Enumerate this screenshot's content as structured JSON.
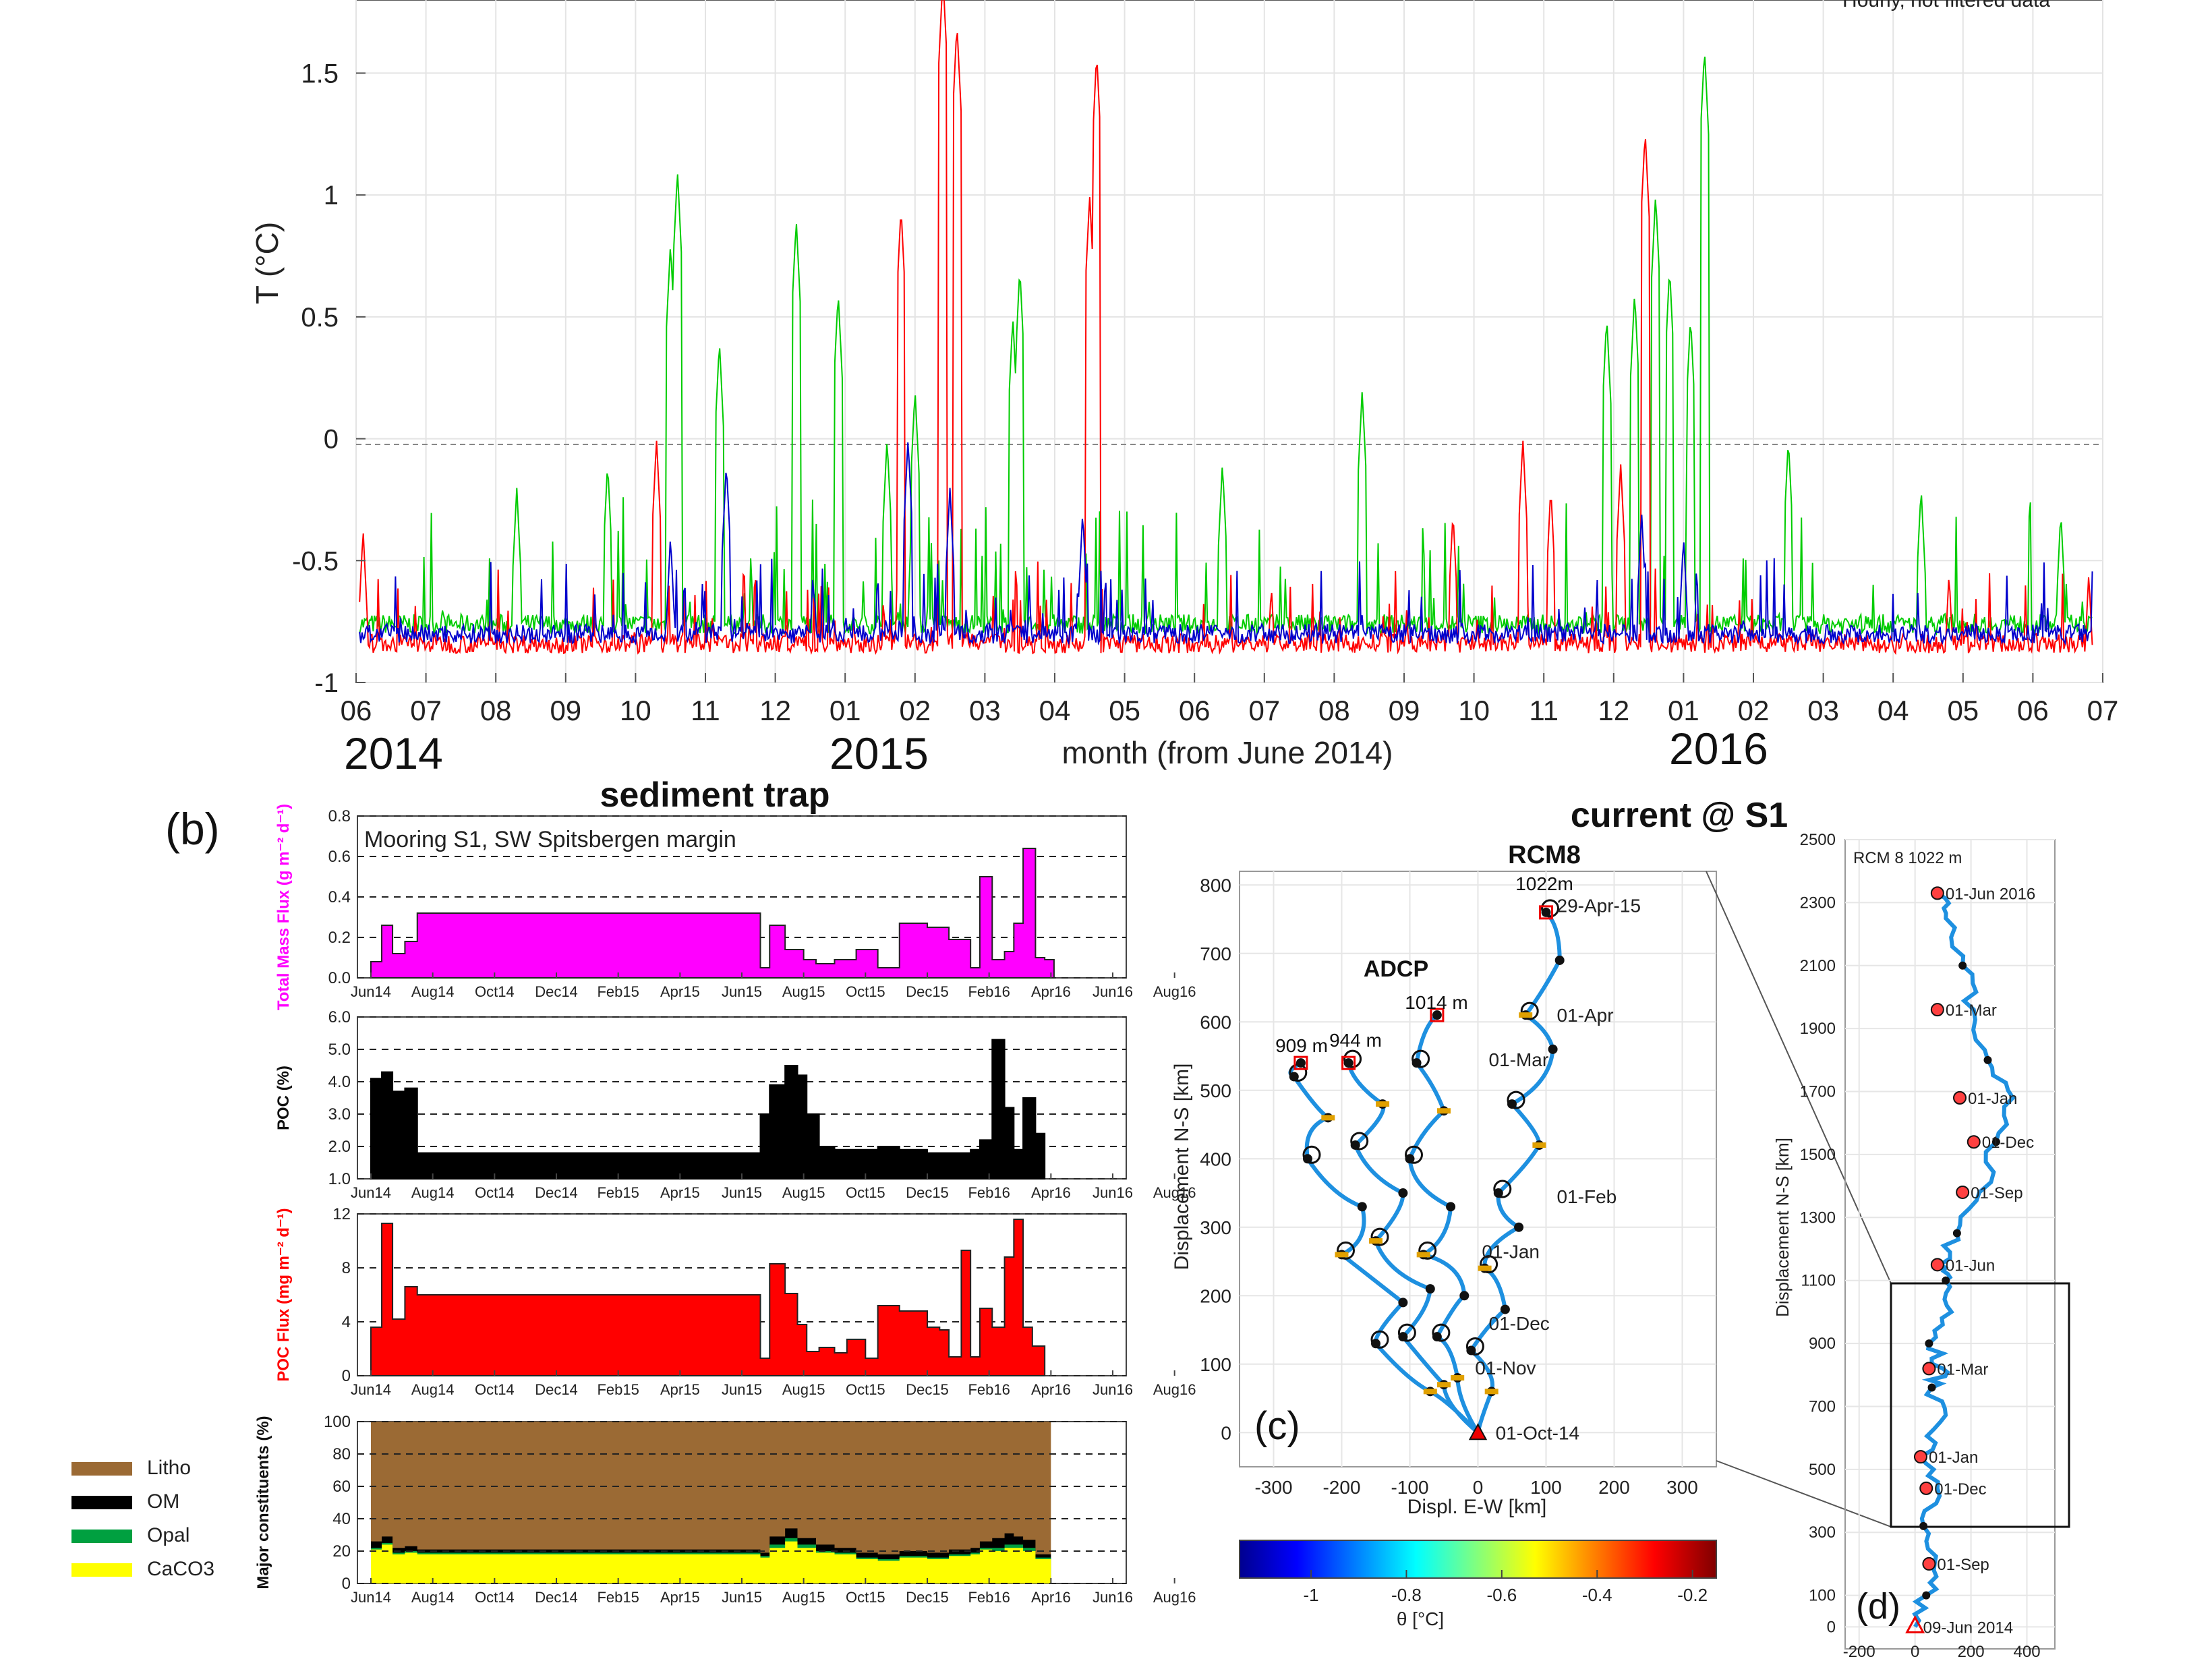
{
  "colors": {
    "red": "#ff0000",
    "green": "#00cc00",
    "blue": "#0000cc",
    "magenta": "#ff00ff",
    "litho": "#9b6a34",
    "om": "#000000",
    "opal": "#00a040",
    "caco3": "#ffff00",
    "track": "#1e90e0"
  },
  "panel_a": {
    "annotation": "Hourly, not filtered data",
    "year_labels": [
      "2014",
      "2015",
      "2016"
    ]
  },
  "panel_b": {
    "label": "(b)",
    "title": "sediment trap",
    "mooring_note": "Mooring S1, SW Spitsbergen margin",
    "legend": [
      "Litho",
      "OM",
      "Opal",
      "CaCO3"
    ]
  },
  "panel_c": {
    "label": "(c)",
    "title": "current @ S1",
    "track_labels": {
      "rcm8": "RCM8",
      "rcm8_depth": "1022m",
      "adcp": "ADCP",
      "d1014": "1014 m",
      "d944": "944 m",
      "d909": "909 m"
    },
    "date_labels": [
      "29-Apr-15",
      "01-Apr",
      "01-Mar",
      "01-Feb",
      "01-Jan",
      "01-Dec",
      "01-Nov",
      "01-Oct-14"
    ],
    "colorbar": {
      "label": "θ [°C]",
      "ticks": [
        "-1",
        "-0.8",
        "-0.6",
        "-0.4",
        "-0.2"
      ]
    }
  },
  "panel_d": {
    "label": "(d)",
    "title": "RCM 8 1022 m",
    "date_labels": [
      "01-Jun 2016",
      "01-Mar",
      "01-Jan",
      "01-Dec",
      "01-Sep",
      "01-Jun",
      "01-Mar",
      "01-Jan",
      "01-Dec",
      "01-Sep",
      "09-Jun 2014"
    ]
  },
  "chart_data": [
    {
      "id": "a",
      "type": "line",
      "title": "",
      "xlabel": "month (from June 2014)",
      "ylabel": "T (°C)",
      "ylim": [
        -1,
        1.8
      ],
      "yticks": [
        "-1",
        "-0.5",
        "0",
        "0.5",
        "1",
        "1.5"
      ],
      "xticks": [
        "06",
        "07",
        "08",
        "09",
        "10",
        "11",
        "12",
        "01",
        "02",
        "03",
        "04",
        "05",
        "06",
        "07",
        "08",
        "09",
        "10",
        "11",
        "12",
        "01",
        "02",
        "03",
        "04",
        "05",
        "06",
        "07"
      ],
      "x_month_range": [
        0,
        25
      ],
      "zero_reference": "dashed",
      "series": [
        {
          "color": "green",
          "level": -0.76,
          "spikes": [
            [
              2.3,
              -0.2
            ],
            [
              3.6,
              -0.1
            ],
            [
              4.5,
              0.8
            ],
            [
              4.6,
              1.1
            ],
            [
              5.2,
              0.4
            ],
            [
              6.3,
              0.9
            ],
            [
              6.9,
              0.6
            ],
            [
              7.6,
              0.0
            ],
            [
              8.0,
              0.2
            ],
            [
              9.4,
              0.5
            ],
            [
              9.5,
              0.7
            ],
            [
              12.4,
              -0.1
            ],
            [
              14.4,
              0.2
            ],
            [
              17.9,
              0.5
            ],
            [
              18.3,
              0.6
            ],
            [
              18.6,
              1.0
            ],
            [
              18.8,
              0.7
            ],
            [
              19.1,
              0.5
            ],
            [
              19.3,
              1.6
            ],
            [
              20.5,
              0.0
            ],
            [
              22.4,
              -0.2
            ],
            [
              24.4,
              -0.3
            ]
          ]
        },
        {
          "color": "red",
          "level": -0.84,
          "spikes": [
            [
              0.1,
              -0.37
            ],
            [
              4.3,
              0.0
            ],
            [
              7.8,
              0.95
            ],
            [
              8.4,
              1.9
            ],
            [
              8.6,
              1.7
            ],
            [
              10.5,
              1.0
            ],
            [
              10.6,
              1.58
            ],
            [
              13.1,
              -0.6
            ],
            [
              15.7,
              -0.3
            ],
            [
              16.7,
              0.0
            ],
            [
              17.1,
              -0.2
            ],
            [
              18.1,
              -0.1
            ],
            [
              18.45,
              1.26
            ],
            [
              22.8,
              -0.55
            ],
            [
              24.8,
              -0.55
            ]
          ]
        },
        {
          "color": "blue",
          "level": -0.8,
          "spikes": [
            [
              4.5,
              -0.4
            ],
            [
              5.3,
              -0.1
            ],
            [
              7.9,
              0.0
            ],
            [
              8.5,
              -0.2
            ],
            [
              10.4,
              -0.3
            ],
            [
              18.4,
              -0.3
            ],
            [
              19.0,
              -0.4
            ]
          ]
        }
      ]
    },
    {
      "id": "b1",
      "type": "bar",
      "ylabel": "Total Mass Flux (g m⁻² d⁻¹)",
      "ylim": [
        0,
        0.8
      ],
      "yticks": [
        "0.0",
        "0.2",
        "0.4",
        "0.6",
        "0.8"
      ],
      "xticks": [
        "Jun14",
        "Aug14",
        "Oct14",
        "Dec14",
        "Feb15",
        "Apr15",
        "Jun15",
        "Aug15",
        "Oct15",
        "Dec15",
        "Feb16",
        "Apr16",
        "Jun16",
        "Aug16"
      ],
      "steps": [
        [
          0.0,
          0.08
        ],
        [
          0.35,
          0.26
        ],
        [
          0.7,
          0.12
        ],
        [
          1.1,
          0.18
        ],
        [
          1.5,
          0.32
        ],
        [
          12.6,
          0.05
        ],
        [
          12.9,
          0.26
        ],
        [
          13.4,
          0.14
        ],
        [
          14.0,
          0.09
        ],
        [
          14.4,
          0.07
        ],
        [
          15.0,
          0.09
        ],
        [
          15.7,
          0.14
        ],
        [
          16.4,
          0.05
        ],
        [
          17.1,
          0.27
        ],
        [
          18.0,
          0.25
        ],
        [
          18.7,
          0.19
        ],
        [
          19.4,
          0.05
        ],
        [
          19.7,
          0.5
        ],
        [
          20.1,
          0.09
        ],
        [
          20.5,
          0.13
        ],
        [
          20.8,
          0.27
        ],
        [
          21.1,
          0.64
        ],
        [
          21.5,
          0.1
        ],
        [
          21.8,
          0.09
        ],
        [
          22.1,
          0.0
        ]
      ]
    },
    {
      "id": "b2",
      "type": "bar",
      "ylabel": "POC (%)",
      "ylim": [
        1,
        6
      ],
      "yticks": [
        "1.0",
        "2.0",
        "3.0",
        "4.0",
        "5.0",
        "6.0"
      ],
      "xticks": [
        "Jun14",
        "Aug14",
        "Oct14",
        "Dec14",
        "Feb15",
        "Apr15",
        "Jun15",
        "Aug15",
        "Oct15",
        "Dec15",
        "Feb16",
        "Apr16",
        "Jun16",
        "Aug16"
      ],
      "steps": [
        [
          0.0,
          4.1
        ],
        [
          0.35,
          4.3
        ],
        [
          0.7,
          3.7
        ],
        [
          1.1,
          3.8
        ],
        [
          1.5,
          1.8
        ],
        [
          12.6,
          3.0
        ],
        [
          12.9,
          3.9
        ],
        [
          13.4,
          4.5
        ],
        [
          13.8,
          4.2
        ],
        [
          14.1,
          3.0
        ],
        [
          14.5,
          2.0
        ],
        [
          15.0,
          1.9
        ],
        [
          15.7,
          1.9
        ],
        [
          16.4,
          2.0
        ],
        [
          17.1,
          1.9
        ],
        [
          18.0,
          1.8
        ],
        [
          18.7,
          1.8
        ],
        [
          19.4,
          1.9
        ],
        [
          19.7,
          2.2
        ],
        [
          20.1,
          5.3
        ],
        [
          20.5,
          3.2
        ],
        [
          20.8,
          1.9
        ],
        [
          21.1,
          3.5
        ],
        [
          21.5,
          2.4
        ],
        [
          21.8,
          1.0
        ]
      ]
    },
    {
      "id": "b3",
      "type": "bar",
      "ylabel": "POC Flux (mg m⁻² d⁻¹)",
      "ylim": [
        0,
        12
      ],
      "yticks": [
        "0",
        "4",
        "8",
        "12"
      ],
      "xticks": [
        "Jun14",
        "Aug14",
        "Oct14",
        "Dec14",
        "Feb15",
        "Apr15",
        "Jun15",
        "Aug15",
        "Oct15",
        "Dec15",
        "Feb16",
        "Apr16",
        "Jun16",
        "Aug16"
      ],
      "steps": [
        [
          0.0,
          3.6
        ],
        [
          0.35,
          11.3
        ],
        [
          0.7,
          4.2
        ],
        [
          1.1,
          6.6
        ],
        [
          1.5,
          6.0
        ],
        [
          12.6,
          1.3
        ],
        [
          12.9,
          8.3
        ],
        [
          13.4,
          6.1
        ],
        [
          13.8,
          3.8
        ],
        [
          14.1,
          1.8
        ],
        [
          14.5,
          2.1
        ],
        [
          15.0,
          1.7
        ],
        [
          15.4,
          2.7
        ],
        [
          16.0,
          1.3
        ],
        [
          16.4,
          5.2
        ],
        [
          17.1,
          4.8
        ],
        [
          18.0,
          3.6
        ],
        [
          18.4,
          3.4
        ],
        [
          18.7,
          1.4
        ],
        [
          19.1,
          9.3
        ],
        [
          19.4,
          1.4
        ],
        [
          19.7,
          5.0
        ],
        [
          20.1,
          3.6
        ],
        [
          20.5,
          8.8
        ],
        [
          20.8,
          11.6
        ],
        [
          21.1,
          3.6
        ],
        [
          21.4,
          2.2
        ],
        [
          21.8,
          0.0
        ]
      ]
    },
    {
      "id": "b4",
      "type": "area",
      "ylabel": "Major constituents (%)",
      "ylim": [
        0,
        100
      ],
      "yticks": [
        "0",
        "20",
        "40",
        "60",
        "80",
        "100"
      ],
      "xticks": [
        "Jun14",
        "Aug14",
        "Oct14",
        "Dec14",
        "Feb15",
        "Apr15",
        "Jun15",
        "Aug15",
        "Oct15",
        "Dec15",
        "Feb16",
        "Apr16",
        "Jun16",
        "Aug16"
      ],
      "caco3_top": [
        [
          0.0,
          21
        ],
        [
          0.35,
          24
        ],
        [
          0.7,
          18
        ],
        [
          1.1,
          19
        ],
        [
          1.5,
          18
        ],
        [
          12.6,
          16
        ],
        [
          12.9,
          22
        ],
        [
          13.4,
          26
        ],
        [
          13.8,
          22
        ],
        [
          14.4,
          19
        ],
        [
          15.0,
          18
        ],
        [
          15.7,
          15
        ],
        [
          16.4,
          14
        ],
        [
          17.1,
          16
        ],
        [
          18.0,
          15
        ],
        [
          18.7,
          17
        ],
        [
          19.4,
          18
        ],
        [
          19.7,
          21
        ],
        [
          20.1,
          20
        ],
        [
          20.5,
          22
        ],
        [
          20.8,
          22
        ],
        [
          21.1,
          20
        ],
        [
          21.5,
          15
        ]
      ],
      "opal_top": [
        [
          0.0,
          22
        ],
        [
          0.35,
          25
        ],
        [
          0.7,
          19
        ],
        [
          1.1,
          20
        ],
        [
          1.5,
          19
        ],
        [
          12.6,
          17
        ],
        [
          12.9,
          24
        ],
        [
          13.4,
          28
        ],
        [
          13.8,
          24
        ],
        [
          14.4,
          20
        ],
        [
          15.0,
          19
        ],
        [
          15.7,
          16
        ],
        [
          16.4,
          15
        ],
        [
          17.1,
          17
        ],
        [
          18.0,
          16
        ],
        [
          18.7,
          18
        ],
        [
          19.4,
          19
        ],
        [
          19.7,
          22
        ],
        [
          20.1,
          22
        ],
        [
          20.5,
          24
        ],
        [
          20.8,
          24
        ],
        [
          21.1,
          22
        ],
        [
          21.5,
          16
        ]
      ],
      "om_top": [
        [
          0.0,
          26
        ],
        [
          0.35,
          29
        ],
        [
          0.7,
          22
        ],
        [
          1.1,
          23
        ],
        [
          1.5,
          21
        ],
        [
          12.6,
          19
        ],
        [
          12.9,
          29
        ],
        [
          13.4,
          34
        ],
        [
          13.8,
          28
        ],
        [
          14.4,
          24
        ],
        [
          15.0,
          22
        ],
        [
          15.7,
          19
        ],
        [
          16.4,
          18
        ],
        [
          17.1,
          20
        ],
        [
          18.0,
          19
        ],
        [
          18.7,
          21
        ],
        [
          19.4,
          22
        ],
        [
          19.7,
          26
        ],
        [
          20.1,
          28
        ],
        [
          20.5,
          31
        ],
        [
          20.8,
          29
        ],
        [
          21.1,
          27
        ],
        [
          21.5,
          18
        ]
      ],
      "end_month": 22.0
    },
    {
      "id": "c",
      "type": "line",
      "xlabel": "Displ. E-W [km]",
      "ylabel": "Displacement N-S [km]",
      "xlim": [
        -350,
        350
      ],
      "ylim": [
        -50,
        820
      ],
      "xticks": [
        "-300",
        "-200",
        "-100",
        "0",
        "100",
        "200",
        "300"
      ],
      "yticks": [
        "0",
        "100",
        "200",
        "300",
        "400",
        "500",
        "600",
        "700",
        "800"
      ],
      "tracks": [
        [
          [
            0,
            0
          ],
          [
            20,
            60
          ],
          [
            -10,
            120
          ],
          [
            40,
            180
          ],
          [
            10,
            240
          ],
          [
            60,
            300
          ],
          [
            30,
            350
          ],
          [
            90,
            420
          ],
          [
            50,
            480
          ],
          [
            110,
            560
          ],
          [
            70,
            610
          ],
          [
            120,
            690
          ],
          [
            100,
            760
          ]
        ],
        [
          [
            0,
            0
          ],
          [
            -30,
            80
          ],
          [
            -60,
            140
          ],
          [
            -20,
            200
          ],
          [
            -80,
            260
          ],
          [
            -40,
            330
          ],
          [
            -100,
            400
          ],
          [
            -50,
            470
          ],
          [
            -90,
            540
          ],
          [
            -60,
            610
          ]
        ],
        [
          [
            0,
            0
          ],
          [
            -50,
            70
          ],
          [
            -110,
            140
          ],
          [
            -70,
            210
          ],
          [
            -150,
            280
          ],
          [
            -110,
            350
          ],
          [
            -180,
            420
          ],
          [
            -140,
            480
          ],
          [
            -190,
            540
          ]
        ],
        [
          [
            0,
            0
          ],
          [
            -70,
            60
          ],
          [
            -150,
            130
          ],
          [
            -110,
            190
          ],
          [
            -200,
            260
          ],
          [
            -170,
            330
          ],
          [
            -250,
            400
          ],
          [
            -220,
            460
          ],
          [
            -270,
            520
          ],
          [
            -260,
            540
          ]
        ]
      ]
    },
    {
      "id": "d",
      "type": "line",
      "xlabel": "",
      "ylabel": "Displacement N-S [km]",
      "xlim": [
        -250,
        500
      ],
      "ylim": [
        -70,
        2500
      ],
      "xticks": [
        "-200",
        "0",
        "200",
        "400"
      ],
      "yticks": [
        "0",
        "100",
        "300",
        "500",
        "700",
        "900",
        "1100",
        "1300",
        "1500",
        "1700",
        "1900",
        "2100",
        "2300",
        "2500"
      ],
      "track": [
        [
          0,
          0
        ],
        [
          40,
          100
        ],
        [
          70,
          200
        ],
        [
          30,
          320
        ],
        [
          80,
          440
        ],
        [
          20,
          540
        ],
        [
          90,
          650
        ],
        [
          60,
          760
        ],
        [
          100,
          820
        ],
        [
          50,
          900
        ],
        [
          130,
          1000
        ],
        [
          110,
          1100
        ],
        [
          90,
          1150
        ],
        [
          150,
          1250
        ],
        [
          230,
          1380
        ],
        [
          290,
          1540
        ],
        [
          350,
          1680
        ],
        [
          260,
          1800
        ],
        [
          210,
          1960
        ],
        [
          170,
          2100
        ],
        [
          110,
          2250
        ],
        [
          80,
          2330
        ]
      ]
    }
  ]
}
